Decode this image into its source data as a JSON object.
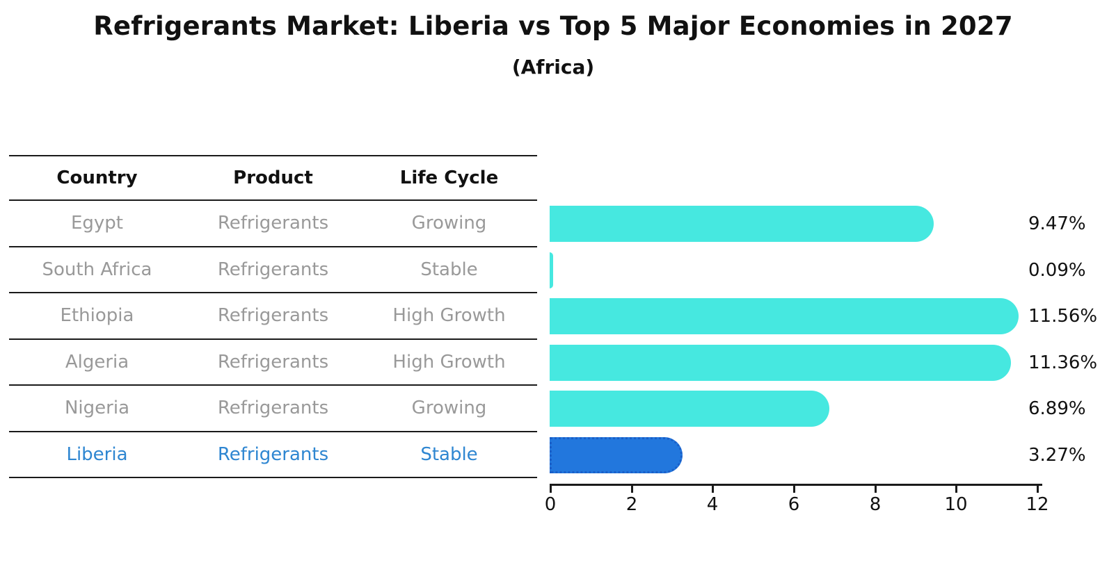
{
  "header": {
    "title": "Refrigerants Market: Liberia vs Top 5 Major Economies in 2027",
    "subtitle": "(Africa)"
  },
  "table": {
    "headers": [
      "Country",
      "Product",
      "Life Cycle"
    ],
    "rows": [
      {
        "country": "Egypt",
        "product": "Refrigerants",
        "life_cycle": "Growing",
        "value_label": "9.47%"
      },
      {
        "country": "South Africa",
        "product": "Refrigerants",
        "life_cycle": "Stable",
        "value_label": "0.09%"
      },
      {
        "country": "Ethiopia",
        "product": "Refrigerants",
        "life_cycle": "High Growth",
        "value_label": "11.56%"
      },
      {
        "country": "Algeria",
        "product": "Refrigerants",
        "life_cycle": "High Growth",
        "value_label": "11.36%"
      },
      {
        "country": "Nigeria",
        "product": "Refrigerants",
        "life_cycle": "Growing",
        "value_label": "6.89%"
      },
      {
        "country": "Liberia",
        "product": "Refrigerants",
        "life_cycle": "Stable",
        "value_label": "3.27%"
      }
    ]
  },
  "chart_data": {
    "type": "bar",
    "orientation": "horizontal",
    "title": "Refrigerants Market: Liberia vs Top 5 Major Economies in 2027",
    "subtitle": "(Africa)",
    "categories": [
      "Egypt",
      "South Africa",
      "Ethiopia",
      "Algeria",
      "Nigeria",
      "Liberia"
    ],
    "values": [
      9.47,
      0.09,
      11.56,
      11.36,
      6.89,
      3.27
    ],
    "value_labels": [
      "9.47%",
      "0.09%",
      "11.56%",
      "11.36%",
      "6.89%",
      "3.27%"
    ],
    "xlim": [
      0,
      12
    ],
    "x_ticks": [
      0,
      2,
      4,
      6,
      8,
      10,
      12
    ],
    "grid": false,
    "legend": false,
    "highlight_index": 5,
    "bar_color": "#46e8e0",
    "highlight_color": "#2277dd",
    "highlight_border_color": "#1a5fc8",
    "text_color": "#111111",
    "muted_text_color": "#999999",
    "highlight_text_color": "#2e86d1"
  }
}
